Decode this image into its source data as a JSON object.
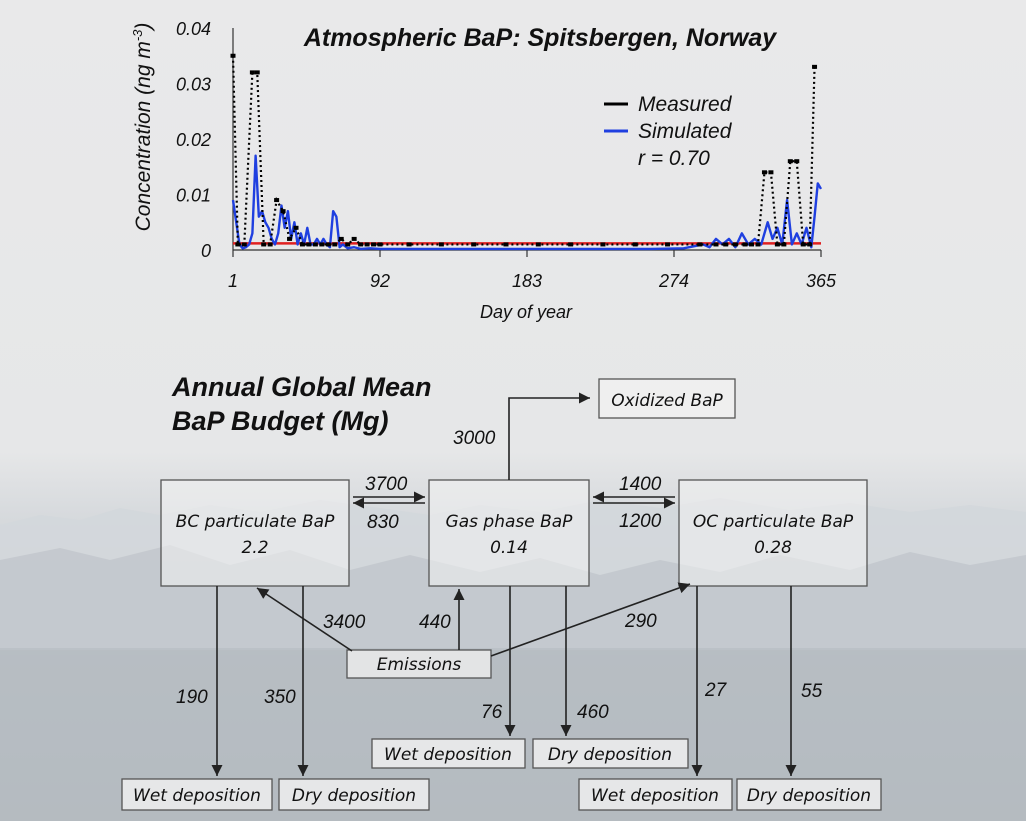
{
  "chart_data": {
    "type": "line",
    "title": "Atmospheric BaP: Spitsbergen, Norway",
    "xlabel": "Day of year",
    "ylabel": "Concentration (ng m",
    "ylabel_sup": "-3",
    "ylabel_close": ")",
    "xlim": [
      1,
      365
    ],
    "ylim": [
      0,
      0.04
    ],
    "xticks": [
      "1",
      "92",
      "183",
      "274",
      "365"
    ],
    "yticks": [
      "0",
      "0.01",
      "0.02",
      "0.03",
      "0.04"
    ],
    "legend": [
      "Measured",
      "Simulated"
    ],
    "annotation": "r = 0.70",
    "legend_position": "top-right",
    "colors": {
      "measured": "#000000",
      "simulated": "#1f3fe0",
      "reference": "#e02020"
    },
    "series": [
      {
        "name": "Measured",
        "x": [
          1,
          4,
          8,
          13,
          16,
          20,
          24,
          28,
          32,
          36,
          40,
          44,
          48,
          52,
          56,
          60,
          64,
          68,
          72,
          76,
          80,
          84,
          88,
          92,
          110,
          130,
          150,
          170,
          190,
          210,
          230,
          250,
          270,
          290,
          300,
          306,
          312,
          318,
          322,
          326,
          330,
          334,
          338,
          342,
          346,
          350,
          354,
          358,
          361
        ],
        "y": [
          0.035,
          0.001,
          0.001,
          0.032,
          0.032,
          0.001,
          0.001,
          0.009,
          0.007,
          0.002,
          0.004,
          0.001,
          0.001,
          0.001,
          0.001,
          0.001,
          0.001,
          0.002,
          0.001,
          0.002,
          0.001,
          0.001,
          0.001,
          0.001,
          0.001,
          0.001,
          0.001,
          0.001,
          0.001,
          0.001,
          0.001,
          0.001,
          0.001,
          0.001,
          0.001,
          0.001,
          0.001,
          0.001,
          0.001,
          0.001,
          0.014,
          0.014,
          0.001,
          0.001,
          0.016,
          0.016,
          0.001,
          0.001,
          0.033
        ]
      },
      {
        "name": "Simulated",
        "x": [
          1,
          3,
          5,
          7,
          9,
          11,
          13,
          15,
          17,
          19,
          21,
          23,
          25,
          27,
          29,
          31,
          33,
          35,
          37,
          39,
          41,
          43,
          45,
          47,
          49,
          51,
          53,
          55,
          57,
          59,
          61,
          63,
          65,
          67,
          69,
          72,
          76,
          80,
          86,
          92,
          100,
          120,
          140,
          160,
          180,
          200,
          220,
          240,
          260,
          280,
          292,
          296,
          300,
          304,
          308,
          312,
          316,
          320,
          324,
          328,
          332,
          335,
          338,
          341,
          344,
          347,
          350,
          353,
          356,
          359,
          361,
          363,
          365
        ],
        "y": [
          0.009,
          0.005,
          0.001,
          0.0003,
          0.0005,
          0.001,
          0.003,
          0.017,
          0.006,
          0.007,
          0.005,
          0.004,
          0.002,
          0.001,
          0.003,
          0.008,
          0.004,
          0.007,
          0.002,
          0.005,
          0.001,
          0.003,
          0.001,
          0.004,
          0.001,
          0.001,
          0.002,
          0.001,
          0.002,
          0.001,
          0.0005,
          0.007,
          0.006,
          0.0005,
          0.001,
          0.0003,
          0.0005,
          0.0002,
          0.0003,
          0.0002,
          0.0002,
          0.0002,
          0.0002,
          0.0002,
          0.0002,
          0.0002,
          0.0002,
          0.0002,
          0.0002,
          0.0003,
          0.001,
          0.0005,
          0.002,
          0.001,
          0.002,
          0.0005,
          0.003,
          0.001,
          0.002,
          0.001,
          0.005,
          0.002,
          0.004,
          0.001,
          0.009,
          0.001,
          0.003,
          0.001,
          0.004,
          0.0005,
          0.006,
          0.012,
          0.011
        ]
      }
    ],
    "reference_line": {
      "y": 0.0012
    }
  },
  "budget": {
    "title_line1": "Annual Global Mean",
    "title_line2": "BaP Budget (Mg)",
    "boxes": {
      "oxidized": "Oxidized BaP",
      "bc_name": "BC particulate BaP",
      "bc_value": "2.2",
      "gas_name": "Gas phase BaP",
      "gas_value": "0.14",
      "oc_name": "OC particulate BaP",
      "oc_value": "0.28",
      "emissions": "Emissions",
      "wet_dep_bc": "Wet deposition",
      "dry_dep_bc": "Dry deposition",
      "wet_dep_gas": "Wet deposition",
      "dry_dep_gas": "Dry deposition",
      "wet_dep_oc": "Wet deposition",
      "dry_dep_oc": "Dry deposition"
    },
    "flows": {
      "gas_to_oxidized": "3000",
      "bc_to_gas": "3700",
      "gas_to_bc": "830",
      "oc_to_gas": "1400",
      "gas_to_oc": "1200",
      "emis_to_bc": "3400",
      "emis_to_gas": "440",
      "emis_to_oc": "290",
      "bc_wet": "190",
      "bc_dry": "350",
      "gas_wet": "76",
      "gas_dry": "460",
      "oc_wet": "27",
      "oc_dry": "55"
    }
  }
}
